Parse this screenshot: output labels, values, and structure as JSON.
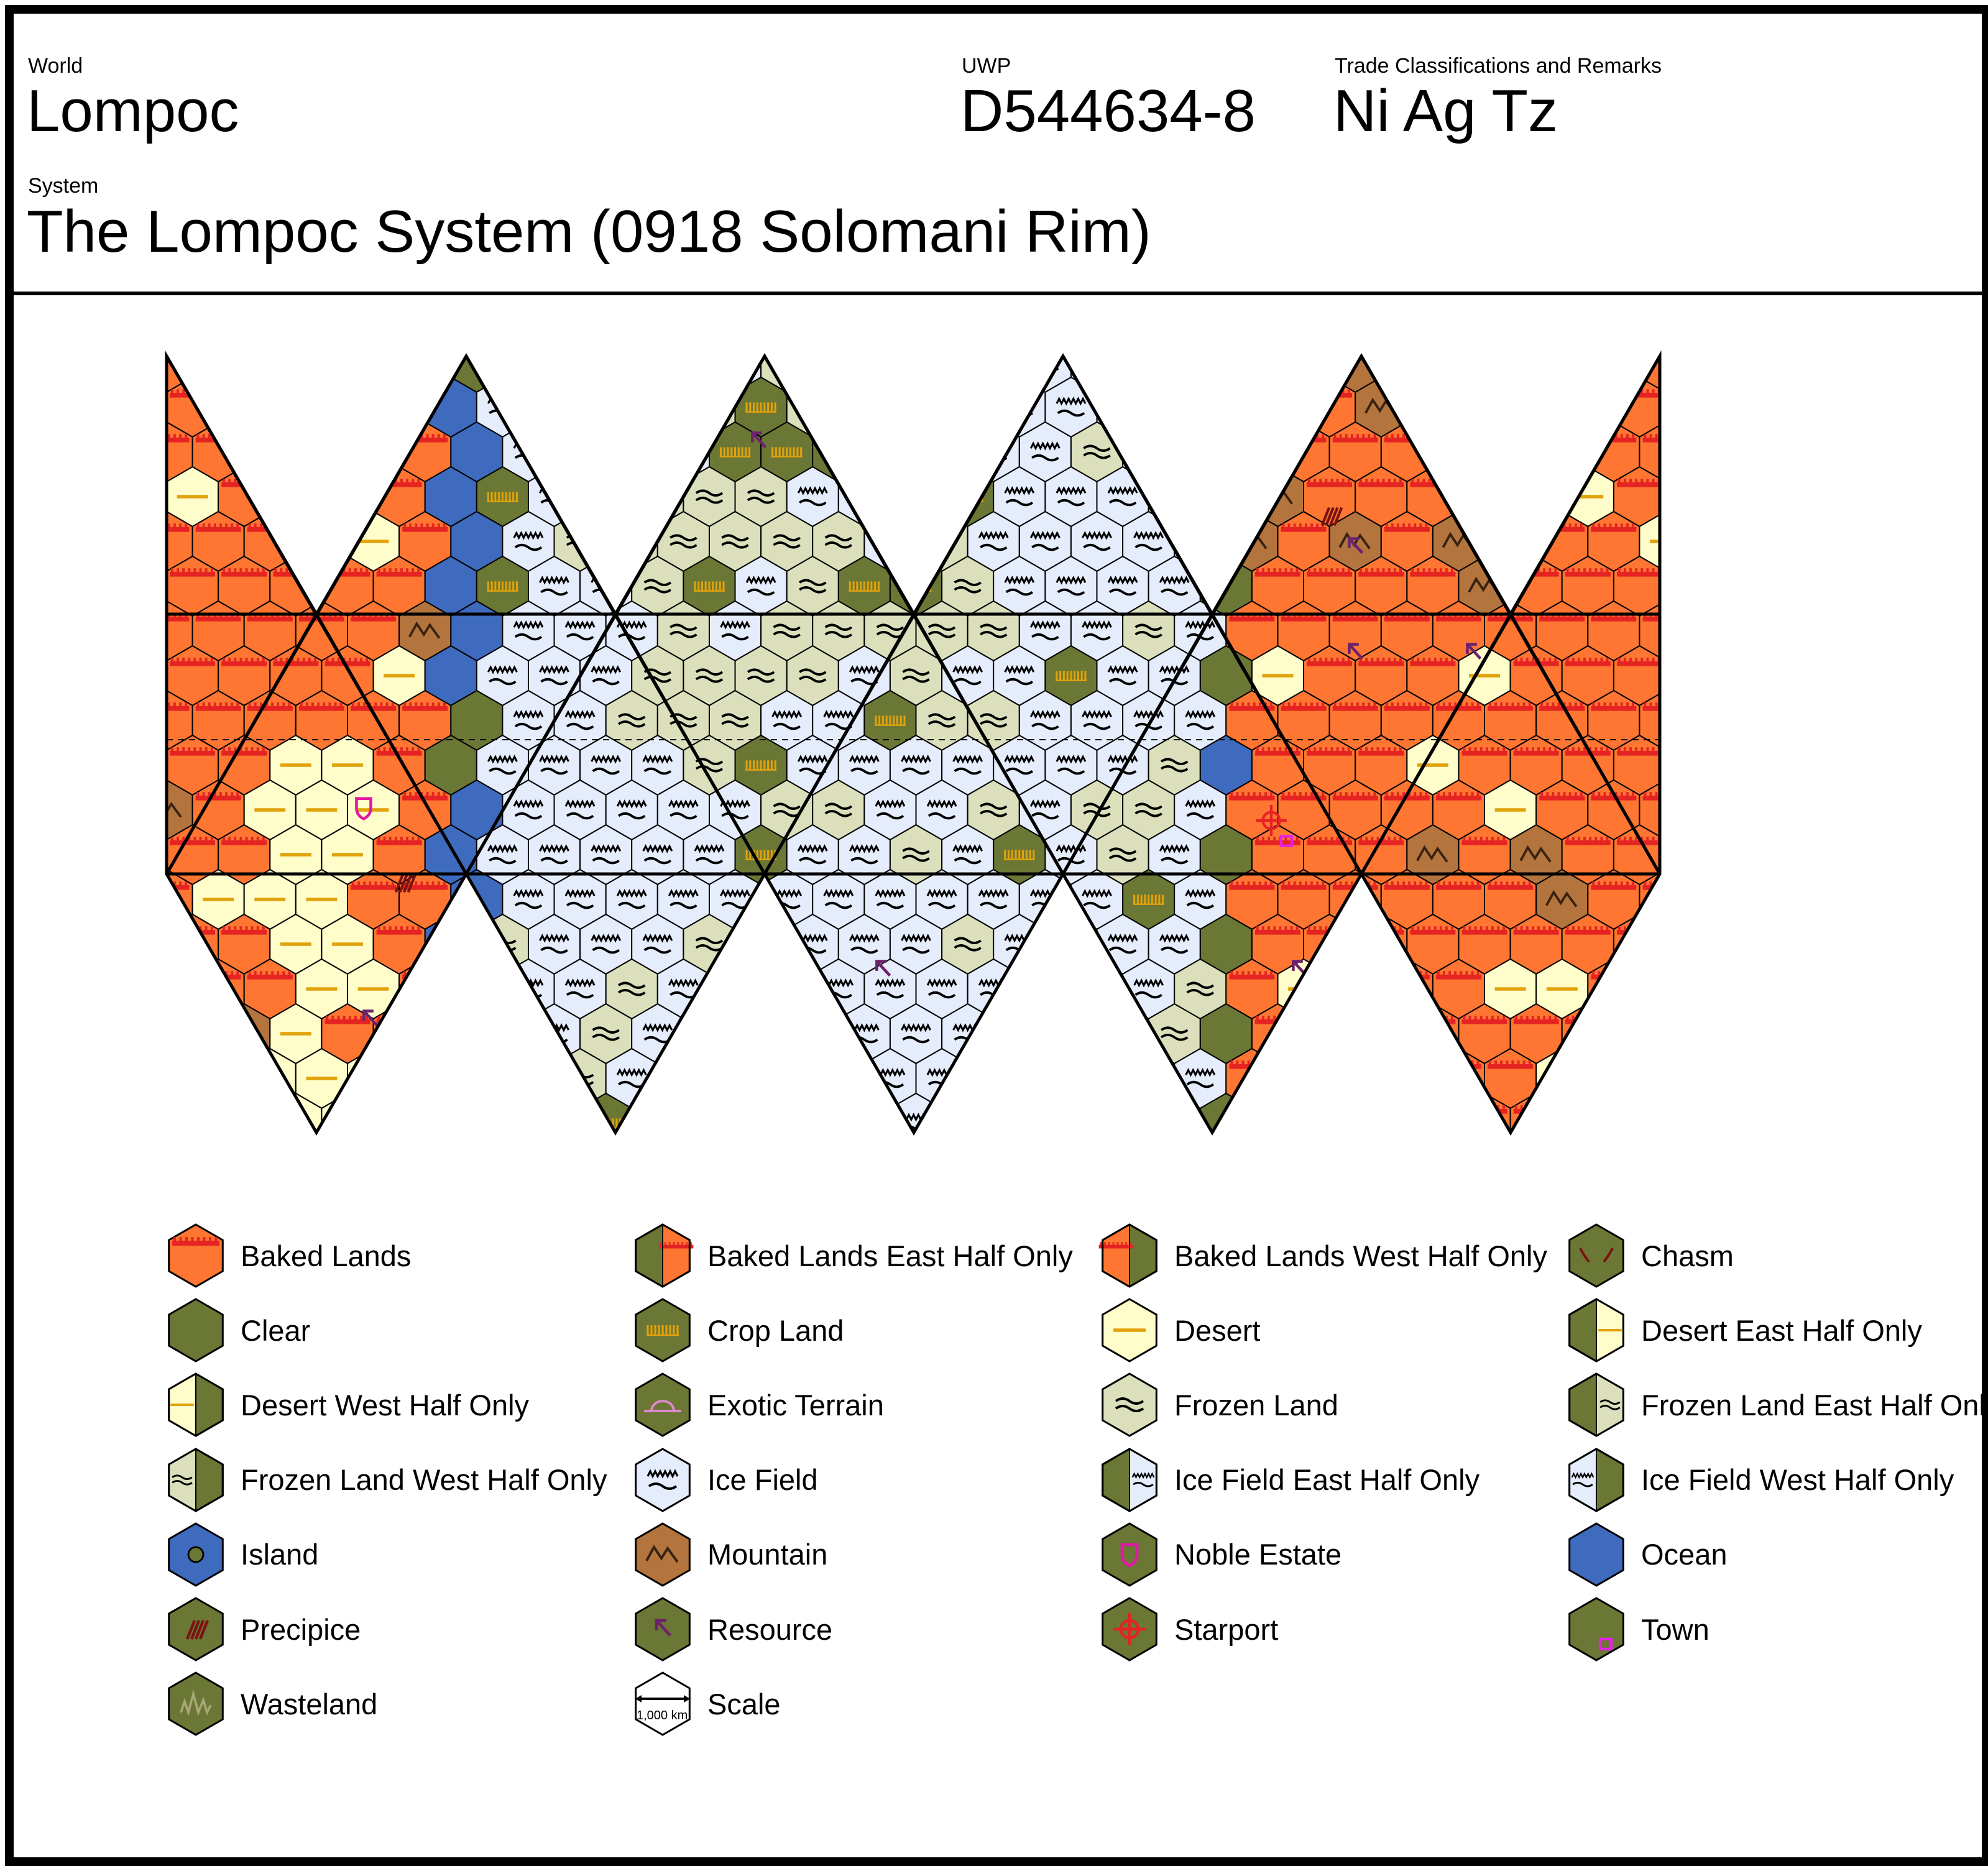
{
  "world": {
    "caption": "World",
    "name": "Lompoc"
  },
  "uwp": {
    "caption": "UWP",
    "value": "D544634-8"
  },
  "trade": {
    "caption": "Trade Classifications and Remarks",
    "value": "Ni Ag Tz"
  },
  "system": {
    "caption": "System",
    "name": "The Lompoc System (0918 Solomani Rim)"
  },
  "colors": {
    "baked": "#fe7631",
    "clear": "#6b7734",
    "desert": "#fffdca",
    "frozen": "#dcdfbc",
    "ice": "#e5ecfb",
    "mountain": "#b3743d",
    "ocean": "#3f6bbe",
    "outline": "#000000",
    "resource": "#6c226c",
    "noble": "#e01aa5",
    "starport": "#e52323",
    "town": "#e423e4",
    "crop": "#e1a20b",
    "chasm": "#7a1212",
    "exotic": "#dd88cc"
  },
  "legend": [
    {
      "label": "Baked Lands",
      "icon": "baked-lands-icon",
      "key": "baked"
    },
    {
      "label": "Baked Lands East Half Only",
      "icon": "baked-lands-east-icon",
      "key": "baked-east"
    },
    {
      "label": "Baked Lands West Half Only",
      "icon": "baked-lands-west-icon",
      "key": "baked-west"
    },
    {
      "label": "Chasm",
      "icon": "chasm-icon",
      "key": "chasm"
    },
    {
      "label": "Clear",
      "icon": "clear-icon",
      "key": "clear"
    },
    {
      "label": "Crop Land",
      "icon": "crop-land-icon",
      "key": "crop"
    },
    {
      "label": "Desert",
      "icon": "desert-icon",
      "key": "desert"
    },
    {
      "label": "Desert East Half Only",
      "icon": "desert-east-icon",
      "key": "desert-east"
    },
    {
      "label": "Desert West Half Only",
      "icon": "desert-west-icon",
      "key": "desert-west"
    },
    {
      "label": "Exotic Terrain",
      "icon": "exotic-terrain-icon",
      "key": "exotic"
    },
    {
      "label": "Frozen Land",
      "icon": "frozen-land-icon",
      "key": "frozen"
    },
    {
      "label": "Frozen Land East Half Only",
      "icon": "frozen-land-east-icon",
      "key": "frozen-east"
    },
    {
      "label": "Frozen Land West Half Only",
      "icon": "frozen-land-west-icon",
      "key": "frozen-west"
    },
    {
      "label": "Ice Field",
      "icon": "ice-field-icon",
      "key": "ice"
    },
    {
      "label": "Ice Field East Half Only",
      "icon": "ice-field-east-icon",
      "key": "ice-east"
    },
    {
      "label": "Ice Field West Half Only",
      "icon": "ice-field-west-icon",
      "key": "ice-west"
    },
    {
      "label": "Island",
      "icon": "island-icon",
      "key": "island"
    },
    {
      "label": "Mountain",
      "icon": "mountain-icon",
      "key": "mountain"
    },
    {
      "label": "Noble Estate",
      "icon": "noble-estate-icon",
      "key": "noble"
    },
    {
      "label": "Ocean",
      "icon": "ocean-icon",
      "key": "ocean"
    },
    {
      "label": "Precipice",
      "icon": "precipice-icon",
      "key": "precipice"
    },
    {
      "label": "Resource",
      "icon": "resource-icon",
      "key": "resource"
    },
    {
      "label": "Starport",
      "icon": "starport-icon",
      "key": "starport"
    },
    {
      "label": "Town",
      "icon": "town-icon",
      "key": "town"
    },
    {
      "label": "Wasteland",
      "icon": "wasteland-icon",
      "key": "wasteland"
    },
    {
      "label": "Scale",
      "icon": "scale-icon",
      "key": "scale",
      "sub": "1,000 km"
    }
  ]
}
